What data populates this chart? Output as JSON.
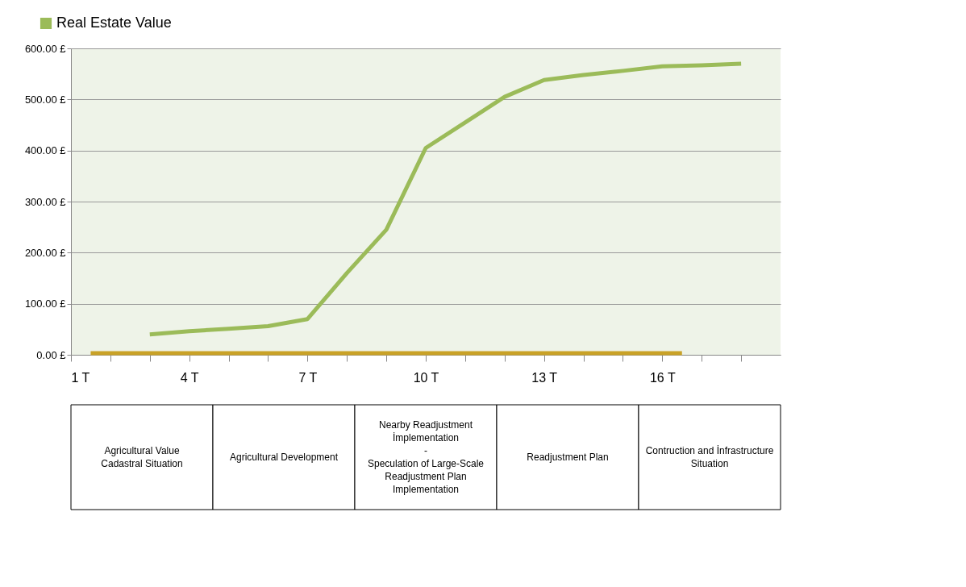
{
  "chart_data": {
    "type": "line",
    "x": [
      3,
      4,
      5,
      6,
      7,
      8,
      9,
      10,
      11,
      12,
      13,
      14,
      15,
      16,
      17,
      18
    ],
    "series": [
      {
        "name": "Real Estate Value",
        "color": "#9bbb59",
        "values": [
          40,
          46,
          51,
          56,
          70,
          160,
          245,
          405,
          455,
          505,
          538,
          548,
          556,
          565,
          567,
          570
        ]
      },
      {
        "color": "#c9a227",
        "x": [
          1.5,
          16.5
        ],
        "values": [
          3,
          3
        ]
      }
    ],
    "xlim": [
      1,
      19
    ],
    "xticks": [
      {
        "value": 1,
        "label": "1 T"
      },
      {
        "value": 2,
        "label": null
      },
      {
        "value": 3,
        "label": null
      },
      {
        "value": 4,
        "label": "4 T"
      },
      {
        "value": 5,
        "label": null
      },
      {
        "value": 6,
        "label": null
      },
      {
        "value": 7,
        "label": "7 T"
      },
      {
        "value": 8,
        "label": null
      },
      {
        "value": 9,
        "label": null
      },
      {
        "value": 10,
        "label": "10 T"
      },
      {
        "value": 11,
        "label": null
      },
      {
        "value": 12,
        "label": null
      },
      {
        "value": 13,
        "label": "13 T"
      },
      {
        "value": 14,
        "label": null
      },
      {
        "value": 15,
        "label": null
      },
      {
        "value": 16,
        "label": "16 T"
      },
      {
        "value": 17,
        "label": null
      },
      {
        "value": 18,
        "label": null
      }
    ],
    "ylim": [
      0,
      600
    ],
    "yticks": [
      {
        "value": 0,
        "label": "0.00 £"
      },
      {
        "value": 100,
        "label": "100.00 £"
      },
      {
        "value": 200,
        "label": "200.00 £"
      },
      {
        "value": 300,
        "label": "300.00 £"
      },
      {
        "value": 400,
        "label": "400.00 £"
      },
      {
        "value": 500,
        "label": "500.00 £"
      },
      {
        "value": 600,
        "label": "600.00 £"
      }
    ],
    "grid": "y",
    "legend": "top left",
    "marker": "none",
    "line_style": "solid",
    "annotations": [
      "Agricultural Value\nCadastral Situation",
      "Agricultural Development",
      "Nearby Readjustment\nİmplementation\n-\nSpeculation of Large-Scale\nReadjustment Plan\nImplementation",
      "Readjustment Plan",
      "Contruction and İnfrastructure\nSituation"
    ]
  }
}
